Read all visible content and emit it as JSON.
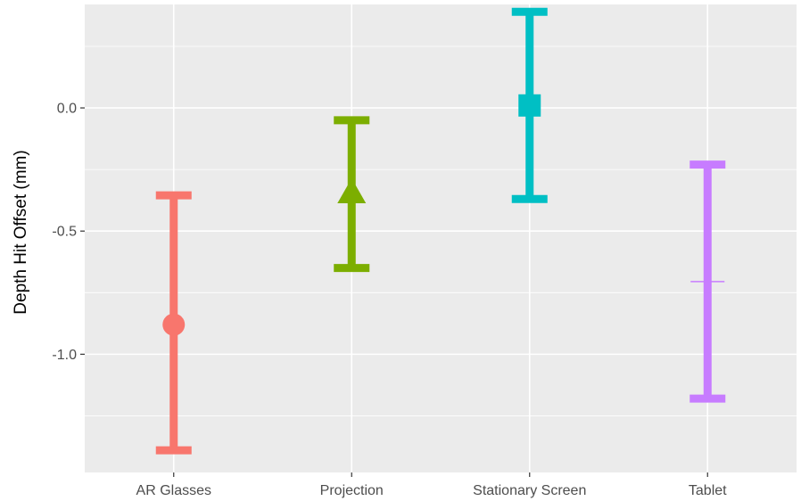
{
  "chart_data": {
    "type": "errorbar",
    "title": "",
    "xlabel": "",
    "ylabel": "Depth Hit Offset (mm)",
    "ylim": [
      -1.48,
      0.42
    ],
    "y_ticks": [
      0.0,
      -0.5,
      -1.0
    ],
    "y_tick_labels": [
      "0.0",
      "-0.5",
      "-1.0"
    ],
    "y_minor_ticks": [
      0.25,
      -0.25,
      -0.75,
      -1.25
    ],
    "categories": [
      "AR Glasses",
      "Projection",
      "Stationary Screen",
      "Tablet"
    ],
    "series": [
      {
        "category": "AR Glasses",
        "mean": -0.88,
        "lower": -1.39,
        "upper": -0.355,
        "marker": "circle",
        "color": "#F8766D"
      },
      {
        "category": "Projection",
        "mean": -0.34,
        "lower": -0.65,
        "upper": -0.05,
        "marker": "triangle",
        "color": "#7CAE00"
      },
      {
        "category": "Stationary Screen",
        "mean": 0.01,
        "lower": -0.37,
        "upper": 0.39,
        "marker": "square",
        "color": "#00BFC4"
      },
      {
        "category": "Tablet",
        "mean": -0.705,
        "lower": -1.18,
        "upper": -0.23,
        "marker": "plus",
        "color": "#C77CFF"
      }
    ],
    "grid": true,
    "legend": "none",
    "panel_background": "#EBEBEB",
    "grid_color": "#FFFFFF"
  }
}
